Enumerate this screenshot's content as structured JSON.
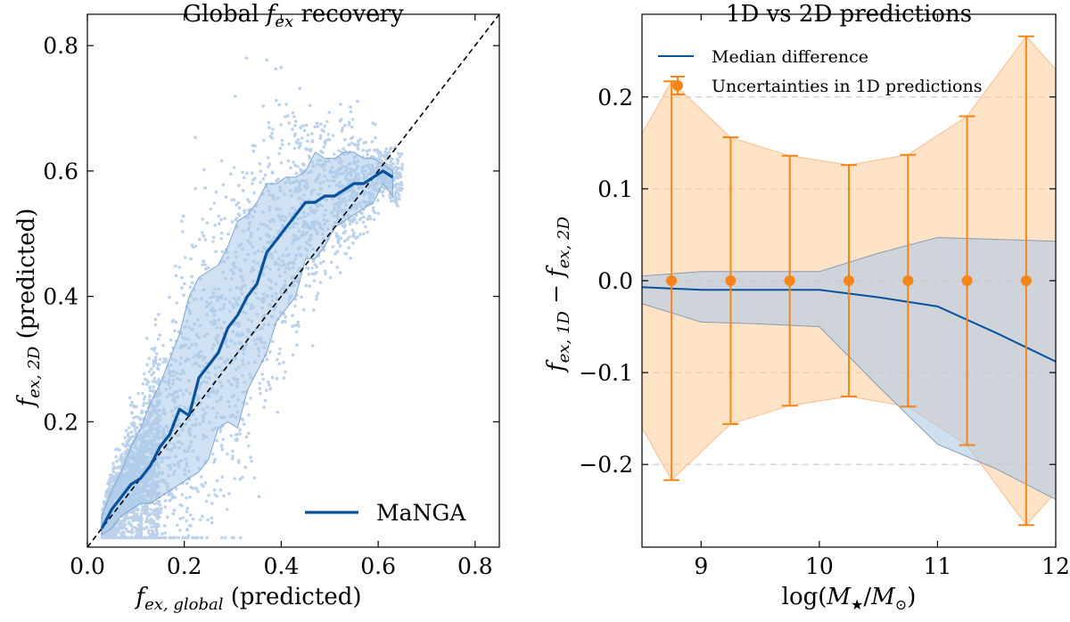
{
  "chart_data": [
    {
      "type": "scatter",
      "title_prefix": "Global ",
      "title_sym": "f",
      "title_sub": "ex",
      "title_suffix": " recovery",
      "xlabel_sym": "f",
      "xlabel_sub": "ex, global",
      "xlabel_suffix": " (predicted)",
      "ylabel_sym": "f",
      "ylabel_sub": "ex, 2D",
      "ylabel_suffix": " (predicted)",
      "xlim": [
        0.0,
        0.85
      ],
      "ylim": [
        0.0,
        0.85
      ],
      "xticks": [
        0.0,
        0.2,
        0.4,
        0.6,
        0.8
      ],
      "xtick_labels": [
        "0.0",
        "0.2",
        "0.4",
        "0.6",
        "0.8"
      ],
      "yticks": [
        0.2,
        0.4,
        0.6,
        0.8
      ],
      "ytick_labels": [
        "0.2",
        "0.4",
        "0.6",
        "0.8"
      ],
      "legend": {
        "label": "MaNGA",
        "placement": "lower-right"
      },
      "one_to_one_line": true,
      "scatter_color": "#6a9bd1",
      "line_color": "#08519c",
      "band_color": "#a8c8e8",
      "median_line": {
        "name": "MaNGA",
        "x": [
          0.03,
          0.05,
          0.07,
          0.09,
          0.11,
          0.13,
          0.15,
          0.17,
          0.19,
          0.21,
          0.23,
          0.25,
          0.27,
          0.29,
          0.31,
          0.33,
          0.35,
          0.37,
          0.39,
          0.41,
          0.43,
          0.45,
          0.47,
          0.49,
          0.51,
          0.53,
          0.55,
          0.57,
          0.59,
          0.61,
          0.63
        ],
        "y": [
          0.03,
          0.06,
          0.08,
          0.1,
          0.11,
          0.13,
          0.16,
          0.18,
          0.22,
          0.21,
          0.27,
          0.29,
          0.31,
          0.35,
          0.37,
          0.4,
          0.42,
          0.47,
          0.49,
          0.51,
          0.53,
          0.55,
          0.55,
          0.56,
          0.56,
          0.57,
          0.58,
          0.58,
          0.59,
          0.6,
          0.59
        ],
        "lower": [
          0.02,
          0.03,
          0.05,
          0.06,
          0.07,
          0.07,
          0.08,
          0.09,
          0.1,
          0.11,
          0.12,
          0.14,
          0.19,
          0.2,
          0.19,
          0.25,
          0.28,
          0.31,
          0.36,
          0.38,
          0.4,
          0.46,
          0.46,
          0.48,
          0.51,
          0.52,
          0.53,
          0.54,
          0.55,
          0.58,
          0.56
        ],
        "upper": [
          0.05,
          0.09,
          0.12,
          0.16,
          0.19,
          0.23,
          0.26,
          0.3,
          0.34,
          0.4,
          0.43,
          0.44,
          0.45,
          0.48,
          0.52,
          0.53,
          0.55,
          0.58,
          0.58,
          0.59,
          0.59,
          0.6,
          0.63,
          0.62,
          0.62,
          0.63,
          0.63,
          0.62,
          0.62,
          0.61,
          0.6
        ]
      }
    },
    {
      "type": "line",
      "title": "1D vs 2D predictions",
      "xlabel_prefix": "log(",
      "xlabel_sym1": "M",
      "xlabel_sub1": "★",
      "xlabel_mid": "/",
      "xlabel_sym2": "M",
      "xlabel_sub2": "⊙",
      "xlabel_suffix": ")",
      "ylabel_sym1": "f",
      "ylabel_sub1": "ex, 1D",
      "ylabel_mid": " − ",
      "ylabel_sym2": "f",
      "ylabel_sub2": "ex, 2D",
      "xlim": [
        8.5,
        12.0
      ],
      "ylim": [
        -0.29,
        0.29
      ],
      "xticks": [
        9,
        10,
        11,
        12
      ],
      "xtick_labels": [
        "9",
        "10",
        "11",
        "12"
      ],
      "yticks": [
        -0.2,
        -0.1,
        0.0,
        0.1,
        0.2
      ],
      "ytick_labels": [
        "−0.2",
        "−0.1",
        "0.0",
        "0.1",
        "0.2"
      ],
      "grid": "horizontal dashed",
      "legend": {
        "placement": "top-left",
        "entries": [
          "Median difference",
          "Uncertainties in 1D predictions"
        ]
      },
      "median_color": "#08519c",
      "band_blue_color": "#aec9e6",
      "band_orange_color": "#fdd0a2",
      "error_color": "#f58518",
      "series": [
        {
          "name": "Median difference",
          "x": [
            8.5,
            9.0,
            9.5,
            10.0,
            10.5,
            11.0,
            11.5,
            12.0
          ],
          "y": [
            -0.007,
            -0.01,
            -0.01,
            -0.01,
            -0.018,
            -0.028,
            -0.057,
            -0.088
          ],
          "band_low": [
            -0.025,
            -0.045,
            -0.047,
            -0.05,
            -0.115,
            -0.178,
            -0.205,
            -0.238
          ],
          "band_high": [
            0.005,
            0.01,
            0.01,
            0.01,
            0.03,
            0.047,
            0.045,
            0.043
          ]
        },
        {
          "name": "Uncertainties in 1D predictions",
          "x": [
            8.75,
            9.25,
            9.75,
            10.25,
            10.75,
            11.25,
            11.75
          ],
          "y": [
            0,
            0,
            0,
            0,
            0,
            0,
            0
          ],
          "yerr": [
            0.217,
            0.156,
            0.136,
            0.126,
            0.137,
            0.179,
            0.266
          ],
          "band_x": [
            8.5,
            8.75,
            9.25,
            9.75,
            10.25,
            10.75,
            11.25,
            11.75,
            12.0
          ],
          "band_half": [
            0.16,
            0.217,
            0.156,
            0.136,
            0.126,
            0.137,
            0.179,
            0.266,
            0.23
          ]
        }
      ]
    }
  ]
}
